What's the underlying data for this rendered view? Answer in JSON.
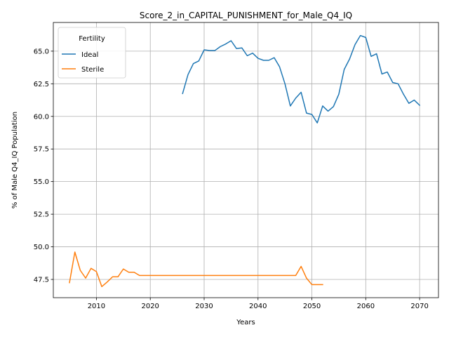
{
  "chart_data": {
    "type": "line",
    "title": "Score_2_in_CAPITAL_PUNISHMENT_for_Male_Q4_IQ",
    "xlabel": "Years",
    "ylabel": "% of Male Q4_IQ Population",
    "xlim": [
      2002,
      2073.5
    ],
    "ylim": [
      46.1,
      67.2
    ],
    "xticks": [
      2010,
      2020,
      2030,
      2040,
      2050,
      2060,
      2070
    ],
    "yticks": [
      47.5,
      50.0,
      52.5,
      55.0,
      57.5,
      60.0,
      62.5,
      65.0
    ],
    "ytick_labels": [
      "47.5",
      "50.0",
      "52.5",
      "55.0",
      "57.5",
      "60.0",
      "62.5",
      "65.0"
    ],
    "grid": true,
    "legend": {
      "title": "Fertility",
      "position": "upper-left"
    },
    "series": [
      {
        "name": "Ideal",
        "color": "#1f77b4",
        "x": [
          2026,
          2027,
          2028,
          2029,
          2030,
          2031,
          2032,
          2033,
          2034,
          2035,
          2036,
          2037,
          2038,
          2039,
          2040,
          2041,
          2042,
          2043,
          2044,
          2045,
          2046,
          2047,
          2048,
          2049,
          2050,
          2051,
          2052,
          2053,
          2054,
          2055,
          2056,
          2057,
          2058,
          2059,
          2060,
          2061,
          2062,
          2063,
          2064,
          2065,
          2066,
          2067,
          2068,
          2069,
          2070
        ],
        "values": [
          61.75,
          63.2,
          64.05,
          64.25,
          65.1,
          65.05,
          65.05,
          65.35,
          65.55,
          65.8,
          65.2,
          65.25,
          64.65,
          64.85,
          64.45,
          64.3,
          64.3,
          64.5,
          63.8,
          62.5,
          60.8,
          61.4,
          61.85,
          60.25,
          60.15,
          59.5,
          60.8,
          60.4,
          60.75,
          61.7,
          63.6,
          64.4,
          65.5,
          66.2,
          66.05,
          64.6,
          64.8,
          63.25,
          63.4,
          62.6,
          62.5,
          61.7,
          61.0,
          61.25,
          60.85
        ]
      },
      {
        "name": "Sterile",
        "color": "#ff7f0e",
        "x": [
          2005,
          2006,
          2007,
          2008,
          2009,
          2010,
          2011,
          2012,
          2013,
          2014,
          2015,
          2016,
          2017,
          2018,
          2019,
          2020,
          2021,
          2022,
          2023,
          2024,
          2025,
          2026,
          2027,
          2028,
          2029,
          2030,
          2031,
          2032,
          2033,
          2034,
          2035,
          2036,
          2037,
          2038,
          2039,
          2040,
          2041,
          2042,
          2043,
          2044,
          2045,
          2046,
          2047,
          2048,
          2049,
          2050,
          2051,
          2052
        ],
        "values": [
          47.25,
          49.6,
          48.2,
          47.6,
          48.35,
          48.1,
          46.95,
          47.3,
          47.7,
          47.7,
          48.3,
          48.05,
          48.05,
          47.8,
          47.8,
          47.8,
          47.8,
          47.8,
          47.8,
          47.8,
          47.8,
          47.8,
          47.8,
          47.8,
          47.8,
          47.8,
          47.8,
          47.8,
          47.8,
          47.8,
          47.8,
          47.8,
          47.8,
          47.8,
          47.8,
          47.8,
          47.8,
          47.8,
          47.8,
          47.8,
          47.8,
          47.8,
          47.8,
          48.5,
          47.6,
          47.1,
          47.1,
          47.1
        ]
      }
    ]
  }
}
